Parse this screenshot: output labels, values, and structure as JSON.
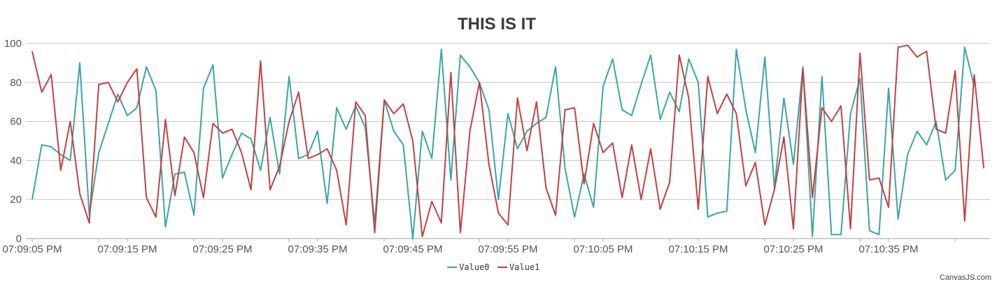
{
  "chart_data": {
    "type": "line",
    "title": "THIS IS IT",
    "xlabel": "",
    "ylabel": "",
    "ylim": [
      0,
      100
    ],
    "y_ticks": [
      0,
      20,
      40,
      60,
      80,
      100
    ],
    "x_ticks": [
      "07:09:05 PM",
      "07:09:15 PM",
      "07:09:25 PM",
      "07:09:35 PM",
      "07:09:45 PM",
      "07:09:55 PM",
      "07:10:05 PM",
      "07:10:15 PM",
      "07:10:25 PM",
      "07:10:35 PM"
    ],
    "x_start": "07:09:05 PM",
    "x_step_seconds": 1,
    "grid": true,
    "legend_position": "bottom-center",
    "series": [
      {
        "name": "Value0",
        "color": "#3aa5a8",
        "values": [
          20,
          48,
          47,
          43,
          40,
          90,
          12,
          44,
          59,
          74,
          63,
          67,
          88,
          76,
          6,
          33,
          34,
          12,
          77,
          89,
          31,
          43,
          54,
          51,
          35,
          62,
          33,
          83,
          41,
          43,
          55,
          18,
          67,
          56,
          68,
          57,
          8,
          71,
          55,
          48,
          0,
          55,
          41,
          97,
          30,
          94,
          88,
          80,
          66,
          20,
          64,
          46,
          55,
          59,
          62,
          88,
          36,
          11,
          33,
          16,
          78,
          92,
          66,
          63,
          79,
          94,
          61,
          75,
          65,
          92,
          80,
          11,
          13,
          14,
          97,
          66,
          44,
          93,
          26,
          72,
          38,
          88,
          1,
          83,
          2,
          2,
          64,
          82,
          4,
          2,
          77,
          10,
          43,
          55,
          48,
          60,
          30,
          35,
          98,
          78
        ]
      },
      {
        "name": "Value1",
        "color": "#c24142",
        "values": [
          96,
          75,
          84,
          35,
          60,
          23,
          8,
          79,
          80,
          70,
          80,
          87,
          21,
          11,
          61,
          22,
          52,
          44,
          21,
          59,
          54,
          56,
          44,
          25,
          91,
          25,
          37,
          60,
          75,
          41,
          43,
          46,
          35,
          7,
          70,
          63,
          3,
          71,
          64,
          69,
          50,
          1,
          19,
          8,
          85,
          3,
          55,
          80,
          38,
          13,
          7,
          72,
          45,
          70,
          26,
          12,
          66,
          67,
          28,
          59,
          44,
          49,
          21,
          48,
          20,
          46,
          15,
          29,
          94,
          72,
          15,
          83,
          64,
          74,
          64,
          27,
          39,
          7,
          25,
          52,
          5,
          87,
          21,
          67,
          60,
          68,
          5,
          95,
          30,
          31,
          16,
          98,
          99,
          93,
          96,
          56,
          54,
          86,
          9,
          84,
          36
        ]
      }
    ]
  },
  "credit": "CanvasJS.com"
}
